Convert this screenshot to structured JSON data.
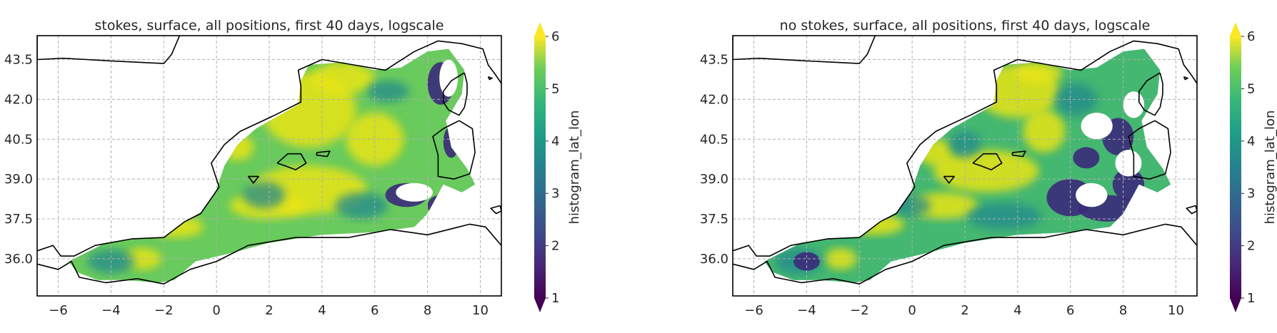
{
  "panels": [
    {
      "title": "stokes, surface, all positions, first 40 days, logscale",
      "variant": "stokes"
    },
    {
      "title": "no stokes, surface, all positions, first 40 days, logscale",
      "variant": "nostokes"
    }
  ],
  "chart_data": [
    {
      "type": "heatmap",
      "title": "stokes, surface, all positions, first 40 days, logscale",
      "xlim": [
        -6.8,
        10.8
      ],
      "ylim": [
        34.6,
        44.4
      ],
      "xticks": [
        -6,
        -4,
        -2,
        0,
        2,
        4,
        6,
        8,
        10
      ],
      "xtick_labels": [
        "−6",
        "−4",
        "−2",
        "0",
        "2",
        "4",
        "6",
        "8",
        "10"
      ],
      "yticks": [
        36.0,
        37.5,
        39.0,
        40.5,
        42.0,
        43.5
      ],
      "ytick_labels": [
        "36.0",
        "37.5",
        "39.0",
        "40.5",
        "42.0",
        "43.5"
      ],
      "grid": true,
      "colorbar": {
        "label": "histogram_lat_lon",
        "range": [
          1,
          6
        ],
        "ticks": [
          1,
          2,
          3,
          4,
          5,
          6
        ],
        "tick_labels": [
          "1",
          "2",
          "3",
          "4",
          "5",
          "6"
        ],
        "extend": "both",
        "colormap": "viridis"
      }
    },
    {
      "type": "heatmap",
      "title": "no stokes, surface, all positions, first 40 days, logscale",
      "xlim": [
        -6.8,
        10.8
      ],
      "ylim": [
        34.6,
        44.4
      ],
      "xticks": [
        -6,
        -4,
        -2,
        0,
        2,
        4,
        6,
        8,
        10
      ],
      "xtick_labels": [
        "−6",
        "−4",
        "−2",
        "0",
        "2",
        "4",
        "6",
        "8",
        "10"
      ],
      "yticks": [
        36.0,
        37.5,
        39.0,
        40.5,
        42.0,
        43.5
      ],
      "ytick_labels": [
        "36.0",
        "37.5",
        "39.0",
        "40.5",
        "42.0",
        "43.5"
      ],
      "grid": true,
      "colorbar": {
        "label": "histogram_lat_lon",
        "range": [
          1,
          6
        ],
        "ticks": [
          1,
          2,
          3,
          4,
          5,
          6
        ],
        "tick_labels": [
          "1",
          "2",
          "3",
          "4",
          "5",
          "6"
        ],
        "extend": "both",
        "colormap": "viridis"
      }
    }
  ]
}
